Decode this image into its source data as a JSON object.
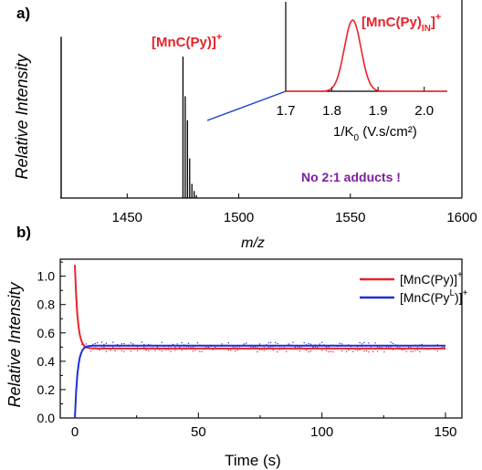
{
  "panel_a": {
    "label": "a)",
    "ylabel": "Relative Intensity",
    "xlabel": "m/z",
    "xticks": [
      "1450",
      "1500",
      "1550",
      "1600"
    ],
    "peak_label": "[MnC(Py)]",
    "peak_label_sup": "+",
    "note": "No 2:1 adducts !",
    "inset": {
      "label": "[MnC(Py)",
      "label_sub": "IN",
      "label_close": "]",
      "label_sup": "+",
      "xticks": [
        "1.7",
        "1.8",
        "1.9",
        "2.0"
      ],
      "xlabel_main": "1/K",
      "xlabel_sub": "0",
      "xlabel_rest": " (V.s/cm²)"
    }
  },
  "panel_b": {
    "label": "b)",
    "ylabel": "Relative Intensity",
    "xlabel": "Time (s)",
    "xticks": [
      "0",
      "50",
      "100",
      "150"
    ],
    "yticks": [
      "0.0",
      "0.2",
      "0.4",
      "0.6",
      "0.8",
      "1.0"
    ],
    "legend": [
      {
        "text": "[MnC(Py)]",
        "sup_mid": "",
        "tail": "",
        "sup": "+",
        "color": "#e8232a"
      },
      {
        "text": "[MnC(Py",
        "sup_mid": "L",
        "tail": ")]",
        "sup": "+",
        "color": "#1f2fd6"
      }
    ]
  },
  "colors": {
    "red": "#e8232a",
    "blue": "#1f2fd6",
    "annotation": "#7b1fa2",
    "line": "#1a3fcf"
  },
  "chart_data": [
    {
      "type": "line",
      "title": "",
      "xlabel": "m/z",
      "ylabel": "Relative Intensity",
      "xlim": [
        1420,
        1600
      ],
      "series": [
        {
          "name": "[MnC(Py)]+",
          "x": [
            1475,
            1476,
            1477,
            1478,
            1479,
            1480,
            1481
          ],
          "y": [
            1.0,
            0.72,
            0.55,
            0.28,
            0.1,
            0.05,
            0.02
          ]
        }
      ],
      "baseline_marker": {
        "x": 1420,
        "y": 1.14
      },
      "annotations": [
        "[MnC(Py)]+",
        "No 2:1 adducts !"
      ]
    },
    {
      "type": "line",
      "title": "",
      "xlabel": "1/K0 (V.s/cm²)",
      "xlim": [
        1.7,
        2.05
      ],
      "series": [
        {
          "name": "[MnC(Py)IN]+",
          "peak_center": 1.845,
          "peak_width": 0.018,
          "peak_height": 1.0
        }
      ]
    },
    {
      "type": "line",
      "title": "",
      "xlabel": "Time (s)",
      "ylabel": "Relative Intensity",
      "xlim": [
        0,
        150
      ],
      "ylim": [
        0,
        1.12
      ],
      "series": [
        {
          "name": "[MnC(Py)]+",
          "start": 1.08,
          "plateau": 0.49,
          "rate": 0.9
        },
        {
          "name": "[MnC(PyL)]+",
          "start": 0.0,
          "plateau": 0.51,
          "rate": 0.9
        }
      ]
    }
  ]
}
